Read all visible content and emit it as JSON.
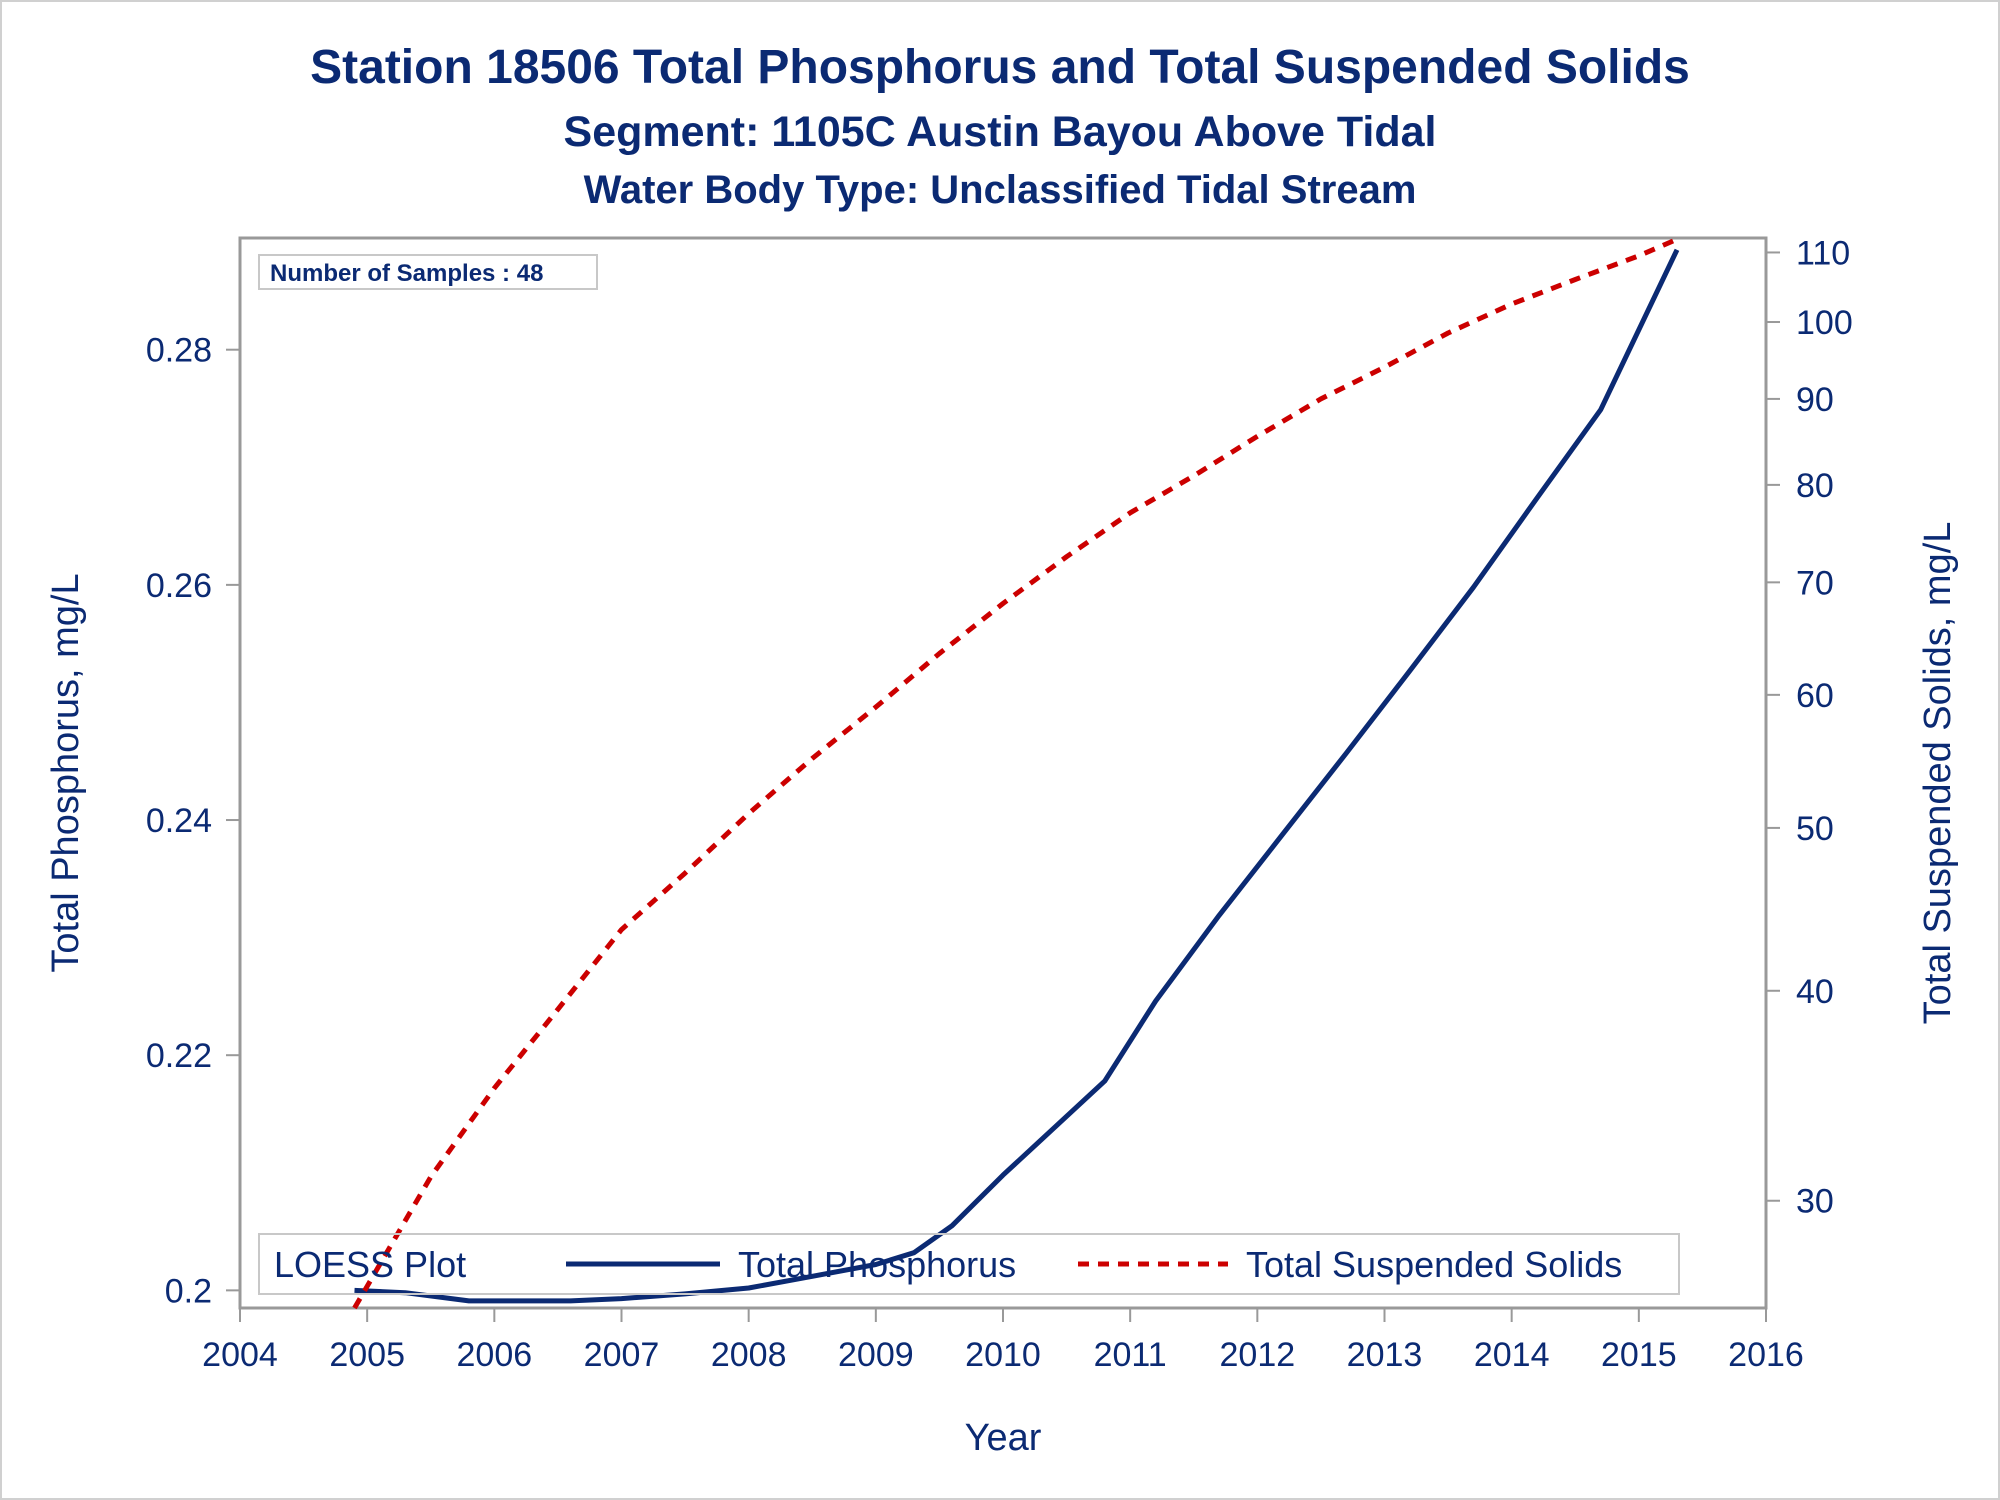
{
  "titles": {
    "line1": "Station 18506  Total Phosphorus and Total Suspended Solids",
    "line2": "Segment: 1105C  Austin Bayou Above Tidal",
    "line3": "Water Body Type: Unclassified Tidal Stream"
  },
  "annotation": "Number of Samples : 48",
  "legend": {
    "title": "LOESS Plot",
    "items": [
      "Total Phosphorus",
      "Total Suspended Solids"
    ]
  },
  "colors": {
    "text": "#0b2a73",
    "phosphorus_line": "#0b2a73",
    "tss_line": "#cc0000",
    "axis": "#999999"
  },
  "chart_data": {
    "type": "line",
    "xlabel": "Year",
    "ylabel_left": "Total Phosphorus, mg/L",
    "ylabel_right": "Total Suspended Solids, mg/L",
    "xlim": [
      2004,
      2016
    ],
    "x_ticks": [
      2004,
      2005,
      2006,
      2007,
      2008,
      2009,
      2010,
      2011,
      2012,
      2013,
      2014,
      2015,
      2016
    ],
    "ylim_left": [
      0.1985,
      0.2895
    ],
    "y_ticks_left": [
      "0.2",
      "0.22",
      "0.24",
      "0.26",
      "0.28"
    ],
    "y_right_scale": "log",
    "ylim_right": [
      25.9,
      112.2
    ],
    "y_ticks_right": [
      30,
      40,
      50,
      60,
      70,
      80,
      90,
      100,
      110
    ],
    "grid": false,
    "legend_position": "bottom, inside plot",
    "series": [
      {
        "name": "Total Phosphorus",
        "axis": "left",
        "style": "solid",
        "x": [
          2004.9,
          2005.3,
          2005.8,
          2006.2,
          2006.6,
          2007.0,
          2007.5,
          2008.0,
          2008.5,
          2009.0,
          2009.3,
          2009.6,
          2010.0,
          2010.4,
          2010.8,
          2011.2,
          2011.7,
          2012.2,
          2012.7,
          2013.2,
          2013.7,
          2014.2,
          2014.7,
          2015.3
        ],
        "values": [
          0.2,
          0.1998,
          0.1991,
          0.1991,
          0.1991,
          0.1993,
          0.1997,
          0.2002,
          0.2012,
          0.2022,
          0.2032,
          0.2055,
          0.2098,
          0.2138,
          0.2178,
          0.2246,
          0.2319,
          0.2388,
          0.2457,
          0.2527,
          0.2598,
          0.2674,
          0.2749,
          0.2885
        ]
      },
      {
        "name": "Total Suspended Solids",
        "axis": "right",
        "style": "dashed",
        "x": [
          2004.9,
          2005.5,
          2006.0,
          2006.5,
          2007.0,
          2007.5,
          2008.0,
          2008.5,
          2009.0,
          2009.5,
          2010.0,
          2010.5,
          2011.0,
          2011.5,
          2012.0,
          2012.5,
          2013.0,
          2013.5,
          2014.0,
          2014.5,
          2015.0,
          2015.3
        ],
        "values": [
          25.9,
          31.0,
          35.0,
          39.0,
          43.5,
          47.0,
          51.0,
          55.0,
          59.0,
          63.5,
          68.0,
          72.5,
          77.0,
          81.0,
          85.5,
          90.0,
          94.0,
          98.5,
          102.5,
          106.0,
          109.5,
          112.0
        ]
      }
    ]
  }
}
